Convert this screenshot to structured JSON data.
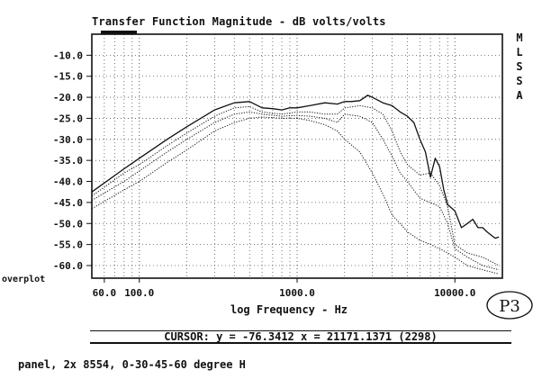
{
  "chart_data": {
    "type": "line",
    "title": "Transfer Function Magnitude - dB volts/volts",
    "xlabel": "log Frequency - Hz",
    "ylabel": "",
    "xscale": "log",
    "xlim": [
      50,
      20000
    ],
    "ylim": [
      -63,
      -5
    ],
    "grid": true,
    "ytick_labels": [
      "-10.0",
      "-15.0",
      "-20.0",
      "-25.0",
      "-30.0",
      "-35.0",
      "-40.0",
      "-45.0",
      "-50.0",
      "-55.0",
      "-60.0"
    ],
    "yticks": [
      -10,
      -15,
      -20,
      -25,
      -30,
      -35,
      -40,
      -45,
      -50,
      -55,
      -60
    ],
    "xtick_labels": [
      "60.0",
      "100.0",
      "1000.0",
      "10000.0"
    ],
    "xticks": [
      60,
      100,
      1000,
      10000
    ],
    "series": [
      {
        "style": "solid",
        "x": [
          50,
          80,
          100,
          150,
          200,
          300,
          400,
          500,
          600,
          700,
          800,
          900,
          1000,
          1200,
          1500,
          1800,
          2000,
          2200,
          2500,
          2800,
          3000,
          3500,
          4000,
          4500,
          5000,
          5500,
          6000,
          6500,
          7000,
          7500,
          8000,
          8500,
          9000,
          10000,
          11000,
          12000,
          13000,
          14000,
          15000,
          16000,
          18000,
          19000
        ],
        "y": [
          -42.5,
          -37,
          -34.5,
          -30,
          -27,
          -23,
          -21.3,
          -21,
          -22.5,
          -22.7,
          -23,
          -22.5,
          -22.5,
          -22,
          -21.3,
          -21.6,
          -21,
          -21,
          -20.8,
          -19.5,
          -20,
          -21.3,
          -22,
          -23.5,
          -24.5,
          -26,
          -30,
          -33,
          -39,
          -34.5,
          -36.5,
          -42,
          -45.5,
          -47,
          -51,
          -50,
          -49,
          -51,
          -51,
          -52,
          -53.5,
          -53.2
        ]
      },
      {
        "style": "dotted",
        "x": [
          50,
          80,
          100,
          150,
          200,
          300,
          400,
          500,
          600,
          800,
          1000,
          1200,
          1500,
          1800,
          2000,
          2500,
          3000,
          3500,
          4000,
          4500,
          5000,
          6000,
          7000,
          8000,
          9000,
          10000,
          12000,
          15000,
          19000
        ],
        "y": [
          -43.5,
          -38,
          -36,
          -31.5,
          -28.5,
          -24.5,
          -22.5,
          -22.2,
          -23.5,
          -24,
          -23.5,
          -23.5,
          -24,
          -24,
          -22.5,
          -22,
          -22.5,
          -24,
          -28,
          -33,
          -36,
          -38.5,
          -38,
          -41,
          -46,
          -55,
          -57,
          -58,
          -60
        ]
      },
      {
        "style": "dotted",
        "x": [
          50,
          80,
          100,
          150,
          200,
          300,
          400,
          500,
          600,
          800,
          1000,
          1200,
          1500,
          1800,
          2000,
          2500,
          3000,
          3500,
          4000,
          4500,
          5000,
          6000,
          7000,
          8000,
          9000,
          10000,
          12000,
          15000,
          19000
        ],
        "y": [
          -44.5,
          -40,
          -37.5,
          -33,
          -30,
          -26,
          -24,
          -23.5,
          -24,
          -24.5,
          -24.3,
          -24.5,
          -25,
          -26,
          -24,
          -24.5,
          -26,
          -30,
          -34,
          -38,
          -40,
          -44,
          -45,
          -46,
          -50,
          -56,
          -58,
          -60,
          -61
        ]
      },
      {
        "style": "dotted",
        "x": [
          50,
          80,
          100,
          150,
          200,
          300,
          400,
          500,
          600,
          800,
          1000,
          1200,
          1500,
          1800,
          2000,
          2500,
          3000,
          3500,
          4000,
          4500,
          5000,
          6000,
          7000,
          8000,
          9000,
          10000,
          12000,
          15000,
          19000
        ],
        "y": [
          -46.5,
          -42,
          -40,
          -35.5,
          -32.5,
          -28,
          -26,
          -25,
          -24.7,
          -25,
          -25,
          -25.5,
          -26.5,
          -28,
          -30,
          -33,
          -38,
          -43,
          -48,
          -50,
          -52,
          -54,
          -55,
          -56,
          -57,
          -58,
          -60,
          -61,
          -62
        ]
      }
    ],
    "cursor_text": "CURSOR: y = -76.3412 x = 21171.1371 (2298)"
  },
  "side_label": [
    "M",
    "L",
    "S",
    "S",
    "A"
  ],
  "overplot_label": "overplot",
  "caption": "panel, 2x 8554, 0-30-45-60 degree H",
  "stamp_text": "P3"
}
